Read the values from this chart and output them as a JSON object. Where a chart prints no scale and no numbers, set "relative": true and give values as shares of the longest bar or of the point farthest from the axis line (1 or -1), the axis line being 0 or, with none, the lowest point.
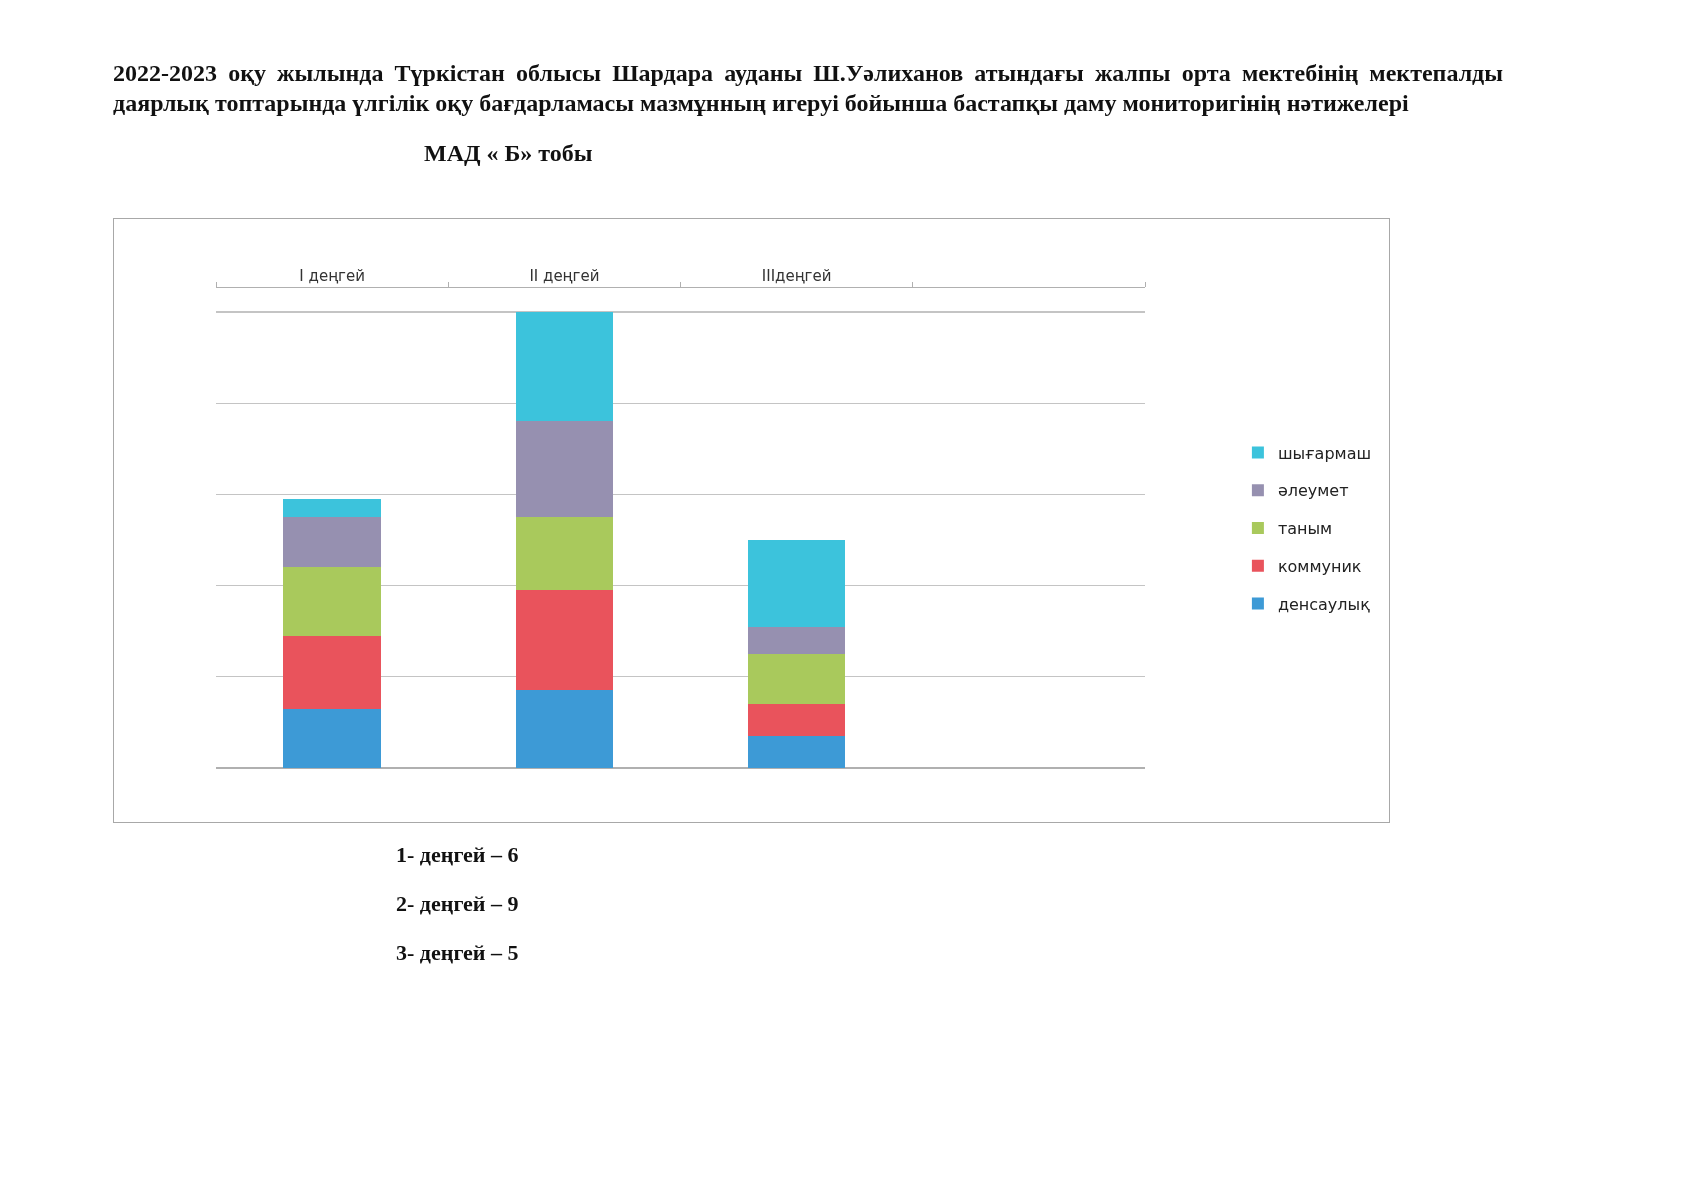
{
  "chart_data": {
    "type": "bar",
    "title": "2022-2023 оқу жылында Түркістан облысы Шардара ауданы Ш.Уәлиханов атындағы жалпы орта мектебінің мектепалды\nдаярлық топтарында үлгілік оқу бағдарламасы мазмұнның игеруі бойынша бастапқы даму мониторигінің нәтижелері",
    "subtitle": "МАД « Б» тобы",
    "categories": [
      "I деңгей",
      "II деңгей",
      "IIIдеңгей",
      null
    ],
    "series": [
      {
        "name": "денсаулық",
        "color": "#3d9ad6",
        "values": [
          0.13,
          0.17,
          0.07,
          null
        ]
      },
      {
        "name": "коммуник",
        "color": "#e9535c",
        "values": [
          0.16,
          0.22,
          0.07,
          null
        ]
      },
      {
        "name": "таным",
        "color": "#a9c95c",
        "values": [
          0.15,
          0.16,
          0.11,
          null
        ]
      },
      {
        "name": "әлеумет",
        "color": "#9690b0",
        "values": [
          0.11,
          0.21,
          0.06,
          null
        ]
      },
      {
        "name": "шығармаш",
        "color": "#3cc3dc",
        "values": [
          0.04,
          0.24,
          0.19,
          null
        ]
      }
    ],
    "stacked": true,
    "relative": true,
    "grid": "y",
    "legend": "right",
    "annotations": [
      "1- деңгей – 6",
      "2- деңгей – 9",
      "3- деңгей – 5"
    ]
  }
}
